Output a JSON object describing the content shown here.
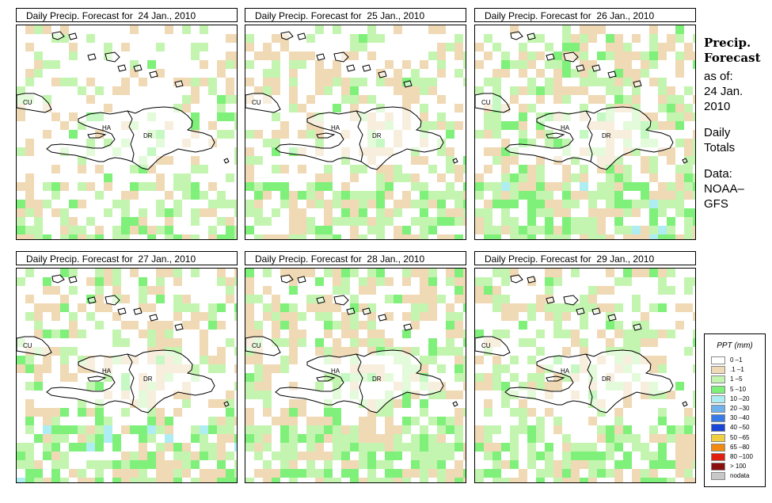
{
  "title_prefix": "Daily Precip. Forecast for",
  "panels": [
    {
      "date": "24 Jan., 2010",
      "seed": 11,
      "bias": 0.1
    },
    {
      "date": "25 Jan., 2010",
      "seed": 23,
      "bias": 0.2
    },
    {
      "date": "26 Jan., 2010",
      "seed": 37,
      "bias": 0.35
    },
    {
      "date": "27 Jan., 2010",
      "seed": 41,
      "bias": 0.3
    },
    {
      "date": "28 Jan., 2010",
      "seed": 53,
      "bias": 0.35
    },
    {
      "date": "29 Jan., 2010",
      "seed": 67,
      "bias": 0.25
    }
  ],
  "map_labels": {
    "cu": "CU",
    "ha": "HA",
    "dr": "DR"
  },
  "sidebar": {
    "title_line1": "Precip.",
    "title_line2": "Forecast",
    "asof_label": "as of:",
    "asof_line1": "24 Jan.",
    "asof_line2": "2010",
    "totals_line1": "Daily",
    "totals_line2": "Totals",
    "data_line1": "Data:",
    "data_line2": "NOAA–",
    "data_line3": "GFS"
  },
  "legend": {
    "title": "PPT (mm)",
    "items": [
      {
        "label": "0 –1",
        "color": "#ffffff"
      },
      {
        "label": ".1 –1",
        "color": "#f0d9b5"
      },
      {
        "label": "1 –5",
        "color": "#c4f5b0"
      },
      {
        "label": "5 –10",
        "color": "#7ff07a"
      },
      {
        "label": "10 –20",
        "color": "#aeeef2"
      },
      {
        "label": "20 –30",
        "color": "#6fb2ee"
      },
      {
        "label": "30 –40",
        "color": "#3a7ae6"
      },
      {
        "label": "40 –50",
        "color": "#1a44d6"
      },
      {
        "label": "50 –65",
        "color": "#f0d040"
      },
      {
        "label": "65 –80",
        "color": "#f08a10"
      },
      {
        "label": "80 –100",
        "color": "#e02010"
      },
      {
        "label": "> 100",
        "color": "#8a1010"
      },
      {
        "label": "nodata",
        "color": "#c8c8c8"
      }
    ]
  }
}
